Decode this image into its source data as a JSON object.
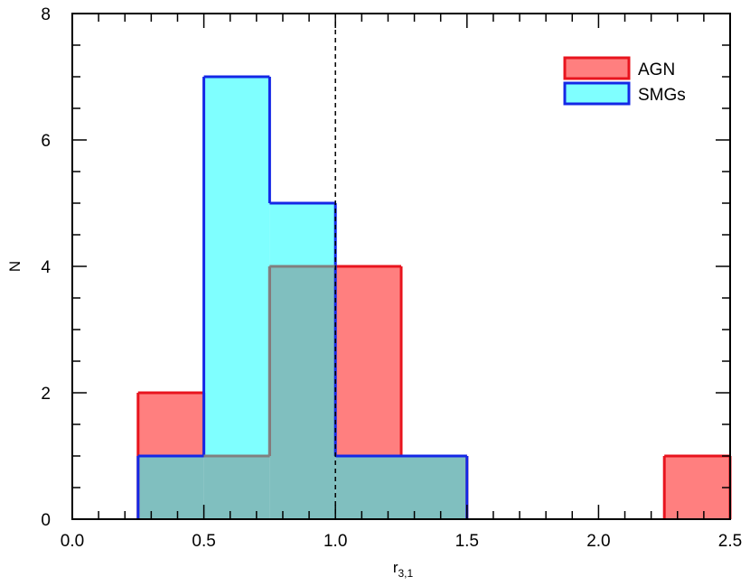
{
  "chart_data": {
    "type": "histogram",
    "xlabel": "r",
    "xlabel_sub": "3,1",
    "ylabel": "N",
    "xlim": [
      0,
      2.5
    ],
    "ylim": [
      0,
      8
    ],
    "x_ticks": [
      "0.0",
      "0.5",
      "1.0",
      "1.5",
      "2.0",
      "2.5"
    ],
    "y_ticks": [
      "0",
      "2",
      "4",
      "6",
      "8"
    ],
    "reference_line_x": 1.0,
    "bin_edges": [
      0.25,
      0.5,
      0.75,
      1.0,
      1.25,
      1.5,
      1.75,
      2.0,
      2.25,
      2.5
    ],
    "series": [
      {
        "name": "AGN",
        "counts": [
          2,
          1,
          4,
          4,
          1,
          0,
          0,
          0,
          1
        ],
        "fill": "#ff7f7f",
        "stroke": "#e8141e"
      },
      {
        "name": "SMGs",
        "counts": [
          1,
          7,
          5,
          1,
          1,
          0,
          0,
          0,
          0
        ],
        "fill": "#7fffff",
        "stroke": "#1428e6"
      }
    ],
    "overlap_fill": "#80bfbf",
    "overlap_stroke": "#808080",
    "legend_position": "top-right"
  }
}
